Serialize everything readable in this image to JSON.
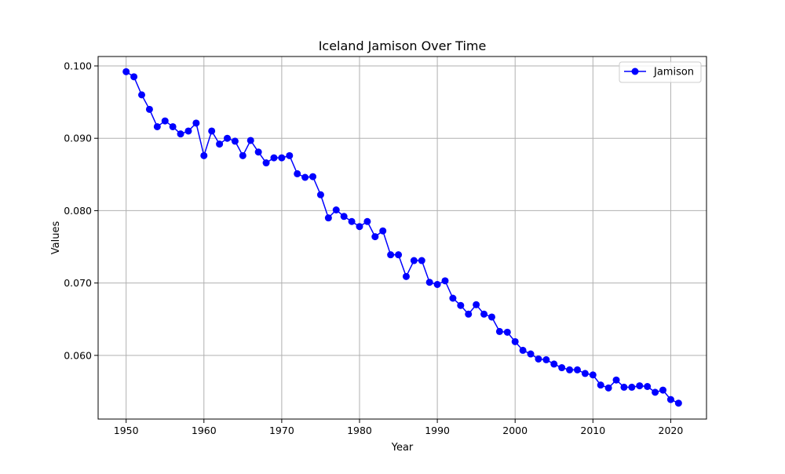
{
  "chart_data": {
    "type": "line",
    "title": "Iceland Jamison Over Time",
    "xlabel": "Year",
    "ylabel": "Values",
    "xlim": [
      1946.4,
      2024.6
    ],
    "ylim": [
      0.0512,
      0.1013
    ],
    "grid": true,
    "legend_position": "top-right",
    "x_ticks": [
      1950,
      1960,
      1970,
      1980,
      1990,
      2000,
      2010,
      2020
    ],
    "y_ticks": [
      0.06,
      0.07,
      0.08,
      0.09,
      0.1
    ],
    "y_tick_labels": [
      "0.060",
      "0.070",
      "0.080",
      "0.090",
      "0.100"
    ],
    "series": [
      {
        "name": "Jamison",
        "color": "#0000ff",
        "marker": "circle",
        "x": [
          1950,
          1951,
          1952,
          1953,
          1954,
          1955,
          1956,
          1957,
          1958,
          1959,
          1960,
          1961,
          1962,
          1963,
          1964,
          1965,
          1966,
          1967,
          1968,
          1969,
          1970,
          1971,
          1972,
          1973,
          1974,
          1975,
          1976,
          1977,
          1978,
          1979,
          1980,
          1981,
          1982,
          1983,
          1984,
          1985,
          1986,
          1987,
          1988,
          1989,
          1990,
          1991,
          1992,
          1993,
          1994,
          1995,
          1996,
          1997,
          1998,
          1999,
          2000,
          2001,
          2002,
          2003,
          2004,
          2005,
          2006,
          2007,
          2008,
          2009,
          2010,
          2011,
          2012,
          2013,
          2014,
          2015,
          2016,
          2017,
          2018,
          2019,
          2020,
          2021
        ],
        "values": [
          0.0992,
          0.0985,
          0.096,
          0.094,
          0.0916,
          0.0924,
          0.0916,
          0.0906,
          0.091,
          0.0921,
          0.0876,
          0.091,
          0.0892,
          0.09,
          0.0896,
          0.0876,
          0.0897,
          0.0881,
          0.0866,
          0.0873,
          0.0873,
          0.0876,
          0.0851,
          0.0846,
          0.0847,
          0.0822,
          0.079,
          0.0801,
          0.0792,
          0.0785,
          0.0778,
          0.0785,
          0.0764,
          0.0772,
          0.0739,
          0.0739,
          0.0709,
          0.0731,
          0.0731,
          0.0701,
          0.0698,
          0.0703,
          0.0679,
          0.0669,
          0.0657,
          0.067,
          0.0657,
          0.0653,
          0.0633,
          0.0632,
          0.0619,
          0.0607,
          0.0602,
          0.0595,
          0.0594,
          0.0588,
          0.0583,
          0.058,
          0.058,
          0.0575,
          0.0573,
          0.0559,
          0.0555,
          0.0566,
          0.0556,
          0.0556,
          0.0558,
          0.0557,
          0.0549,
          0.0552,
          0.0539,
          0.0534
        ]
      }
    ]
  }
}
